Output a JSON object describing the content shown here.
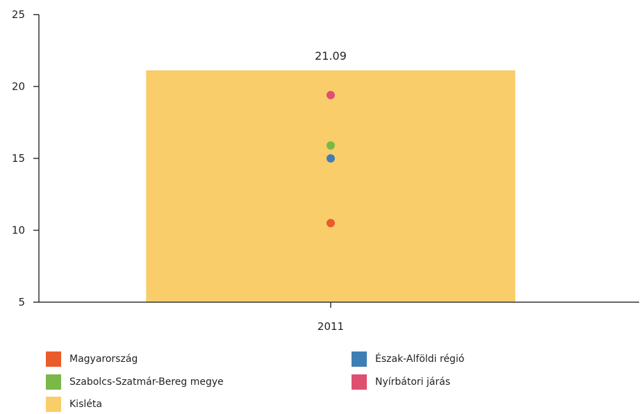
{
  "chart_data": {
    "type": "bar",
    "categories": [
      "2011"
    ],
    "ylim": [
      5,
      25
    ],
    "yticks": [
      5,
      10,
      15,
      20,
      25
    ],
    "grid": false,
    "legend_position": "bottom",
    "bar_series": {
      "name": "Kisléta",
      "values": [
        21.09
      ],
      "data_labels": [
        "21.09"
      ],
      "color": "#f9cd6a"
    },
    "point_series": [
      {
        "name": "Magyarország",
        "values": [
          10.5
        ],
        "color": "#ea5c2a"
      },
      {
        "name": "Észak-Alföldi régió",
        "values": [
          15.0
        ],
        "color": "#3e7fb3"
      },
      {
        "name": "Szabolcs-Szatmár-Bereg megye",
        "values": [
          15.9
        ],
        "color": "#7ab848"
      },
      {
        "name": "Nyírbátori járás",
        "values": [
          19.4
        ],
        "color": "#df4f72"
      }
    ]
  },
  "legend": {
    "items": [
      {
        "label": "Magyarország",
        "color": "#ea5c2a"
      },
      {
        "label": "Észak-Alföldi régió",
        "color": "#3e7fb3"
      },
      {
        "label": "Szabolcs-Szatmár-Bereg megye",
        "color": "#7ab848"
      },
      {
        "label": "Nyírbátori járás",
        "color": "#df4f72"
      },
      {
        "label": "Kisléta",
        "color": "#f9cd6a"
      }
    ]
  }
}
